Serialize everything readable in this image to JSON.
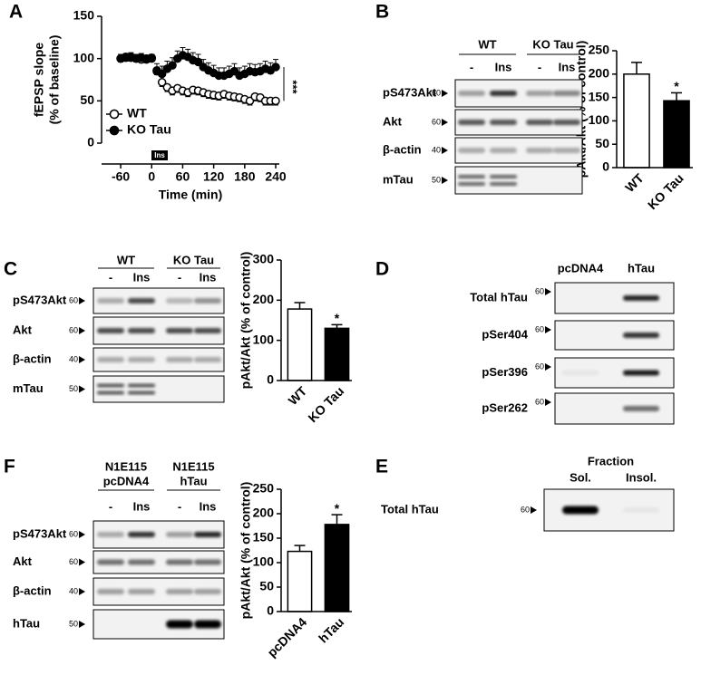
{
  "panel_labels": [
    "A",
    "B",
    "C",
    "D",
    "E",
    "F"
  ],
  "chart_data": [
    {
      "type": "scatter",
      "xlabel": "Time (min)",
      "ylabel": [
        "fEPSP slope",
        "(% of baseline)"
      ],
      "x": [
        -60,
        -50,
        -40,
        -30,
        -20,
        -10,
        0,
        10,
        20,
        30,
        40,
        50,
        60,
        70,
        80,
        90,
        100,
        110,
        120,
        130,
        140,
        150,
        160,
        170,
        180,
        190,
        200,
        210,
        220,
        230,
        240
      ],
      "xlim": [
        -97,
        247
      ],
      "xticks": [
        -60,
        0,
        60,
        120,
        180,
        240
      ],
      "ylim": [
        0,
        150
      ],
      "yticks": [
        0,
        50,
        100,
        150
      ],
      "legend": "lower left",
      "treatment": "Ins",
      "annotation": "***",
      "series": [
        {
          "name": "WT",
          "color": "#000000",
          "fill": "#ffffff",
          "error_direction": "down",
          "values": [
            100,
            102,
            101,
            100,
            99,
            100,
            101,
            86,
            72,
            66,
            62,
            65,
            62,
            60,
            63,
            62,
            60,
            58,
            57,
            56,
            58,
            56,
            55,
            54,
            52,
            50,
            55,
            54,
            50,
            50,
            50
          ],
          "errors": [
            4,
            4,
            4,
            4,
            4,
            4,
            4,
            5,
            5,
            5,
            5,
            5,
            5,
            5,
            5,
            5,
            5,
            5,
            5,
            5,
            5,
            5,
            5,
            5,
            5,
            5,
            5,
            5,
            5,
            5,
            5
          ]
        },
        {
          "name": "KO Tau",
          "color": "#000000",
          "fill": "#000000",
          "error_direction": "up",
          "values": [
            100,
            101,
            102,
            100,
            101,
            99,
            100,
            85,
            82,
            88,
            92,
            100,
            104,
            102,
            98,
            96,
            90,
            86,
            83,
            80,
            80,
            82,
            85,
            80,
            82,
            85,
            84,
            85,
            88,
            86,
            90
          ],
          "errors": [
            5,
            5,
            5,
            5,
            5,
            5,
            5,
            9,
            9,
            9,
            9,
            9,
            9,
            9,
            9,
            9,
            9,
            9,
            9,
            9,
            9,
            9,
            9,
            9,
            9,
            9,
            9,
            9,
            9,
            9,
            9
          ]
        }
      ]
    },
    {
      "type": "bar",
      "ylabel": "pAkt/Akt (% of control)",
      "categories": [
        "WT",
        "KO Tau"
      ],
      "values": [
        200,
        143
      ],
      "errors": [
        25,
        17
      ],
      "colors": [
        "#ffffff",
        "#000000"
      ],
      "ylim": [
        0,
        250
      ],
      "yticks": [
        0,
        50,
        100,
        150,
        200,
        250
      ],
      "annotation": "*"
    },
    {
      "type": "bar",
      "ylabel": "pAkt/Akt (% of control)",
      "categories": [
        "WT",
        "KO Tau"
      ],
      "values": [
        178,
        130
      ],
      "errors": [
        16,
        9
      ],
      "colors": [
        "#ffffff",
        "#000000"
      ],
      "ylim": [
        0,
        300
      ],
      "yticks": [
        0,
        100,
        200,
        300
      ],
      "annotation": "*"
    },
    {
      "type": "bar",
      "ylabel": "pAkt/Akt (% of control)",
      "categories": [
        "pcDNA4",
        "hTau"
      ],
      "values": [
        123,
        178
      ],
      "errors": [
        12,
        20
      ],
      "colors": [
        "#ffffff",
        "#000000"
      ],
      "ylim": [
        0,
        250
      ],
      "yticks": [
        0,
        50,
        100,
        150,
        200,
        250
      ],
      "annotation": "*"
    }
  ],
  "blots": {
    "B": {
      "groups": [
        [
          "WT"
        ],
        [
          "KO Tau"
        ]
      ],
      "lanes": [
        "-",
        "Ins",
        "-",
        "Ins"
      ],
      "rows": [
        {
          "label": "pS473Akt",
          "marker": "60"
        },
        {
          "label": "Akt",
          "marker": "60"
        },
        {
          "label": "β-actin",
          "marker": "40"
        },
        {
          "label": "mTau",
          "marker": "50"
        }
      ]
    },
    "C": {
      "groups": [
        [
          "WT"
        ],
        [
          "KO Tau"
        ]
      ],
      "lanes": [
        "-",
        "Ins",
        "-",
        "Ins"
      ],
      "rows": [
        {
          "label": "pS473Akt",
          "marker": "60"
        },
        {
          "label": "Akt",
          "marker": "60"
        },
        {
          "label": "β-actin",
          "marker": "40"
        },
        {
          "label": "mTau",
          "marker": "50"
        }
      ]
    },
    "D": {
      "columns": [
        "pcDNA4",
        "hTau"
      ],
      "rows": [
        {
          "label": "Total hTau",
          "marker": "60"
        },
        {
          "label": "pSer404",
          "marker": "60"
        },
        {
          "label": "pSer396",
          "marker": "60"
        },
        {
          "label": "pSer262",
          "marker": "60"
        }
      ]
    },
    "E": {
      "title": "Fraction",
      "columns": [
        "Sol.",
        "Insol."
      ],
      "rows": [
        {
          "label": "Total hTau",
          "marker": "60"
        }
      ]
    },
    "F": {
      "groups": [
        [
          "N1E115",
          "pcDNA4"
        ],
        [
          "N1E115",
          "hTau"
        ]
      ],
      "lanes": [
        "-",
        "Ins",
        "-",
        "Ins"
      ],
      "rows": [
        {
          "label": "pS473Akt",
          "marker": "60"
        },
        {
          "label": "Akt",
          "marker": "60"
        },
        {
          "label": "β-actin",
          "marker": "40"
        },
        {
          "label": "hTau",
          "marker": "50"
        }
      ]
    }
  }
}
